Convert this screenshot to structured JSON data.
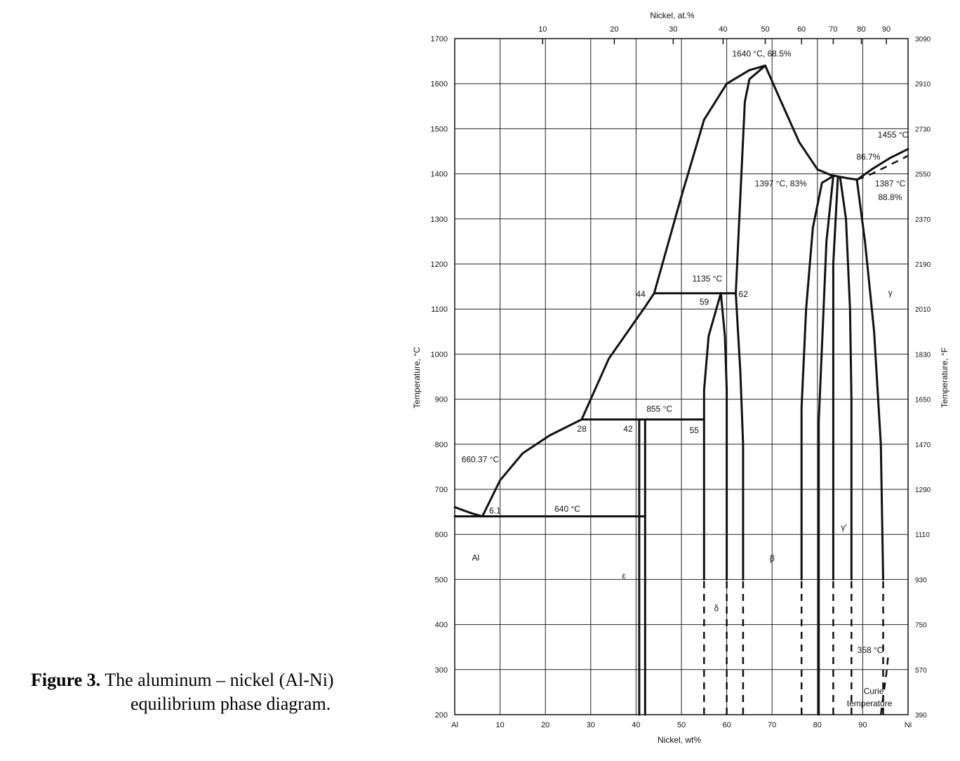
{
  "caption": {
    "label": "Figure 3.",
    "text_line1": "The aluminum – nickel (Al-Ni)",
    "text_line2": "equilibrium phase diagram."
  },
  "chart_data": {
    "type": "phase-diagram",
    "xlabel": "Nickel, wt%",
    "xlabel_top": "Nickel, at.%",
    "ylabel": "Temperature, °C",
    "ylabel_right": "Temperature, °F",
    "xlim": [
      0,
      100
    ],
    "ylim": [
      200,
      1700
    ],
    "x_end_labels": [
      "Al",
      "Ni"
    ],
    "x_ticks": [
      10,
      20,
      30,
      40,
      50,
      60,
      70,
      80,
      90
    ],
    "x_ticks_at": [
      {
        "label": "10",
        "wt": 19.4
      },
      {
        "label": "20",
        "wt": 35.2
      },
      {
        "label": "30",
        "wt": 48.2
      },
      {
        "label": "40",
        "wt": 59.2
      },
      {
        "label": "50",
        "wt": 68.5
      },
      {
        "label": "60",
        "wt": 76.5
      },
      {
        "label": "70",
        "wt": 83.5
      },
      {
        "label": "80",
        "wt": 89.7
      },
      {
        "label": "90",
        "wt": 95.2
      }
    ],
    "y_ticks": [
      200,
      300,
      400,
      500,
      600,
      700,
      800,
      900,
      1000,
      1100,
      1200,
      1300,
      1400,
      1500,
      1600,
      1700
    ],
    "y_ticks_f": [
      "390",
      "570",
      "750",
      "930",
      "1110",
      "1290",
      "1470",
      "1650",
      "1830",
      "2010",
      "2190",
      "2370",
      "2550",
      "2730",
      "2910",
      "3090"
    ],
    "grid": true,
    "curves": [
      {
        "points": [
          [
            0,
            660.37
          ],
          [
            2,
            653
          ],
          [
            4,
            646
          ],
          [
            6.1,
            640
          ]
        ]
      },
      {
        "points": [
          [
            6.1,
            640
          ],
          [
            10,
            720
          ],
          [
            15,
            780
          ],
          [
            21,
            820
          ],
          [
            25,
            840
          ],
          [
            28,
            855
          ]
        ]
      },
      {
        "points": [
          [
            28,
            855
          ],
          [
            34,
            990
          ],
          [
            42,
            1105
          ],
          [
            44,
            1135
          ]
        ]
      },
      {
        "points": [
          [
            44,
            1135
          ],
          [
            50,
            1350
          ],
          [
            55,
            1520
          ],
          [
            60,
            1600
          ],
          [
            65,
            1630
          ],
          [
            68.5,
            1640
          ]
        ]
      },
      {
        "points": [
          [
            68.5,
            1640
          ],
          [
            72,
            1560
          ],
          [
            76,
            1470
          ],
          [
            80,
            1410
          ],
          [
            83,
            1397
          ]
        ]
      },
      {
        "points": [
          [
            83,
            1397
          ],
          [
            86.7,
            1390
          ],
          [
            88.8,
            1387
          ]
        ]
      },
      {
        "points": [
          [
            88.8,
            1387
          ],
          [
            92,
            1410
          ],
          [
            96,
            1435
          ],
          [
            100,
            1455
          ]
        ]
      },
      {
        "points": [
          [
            0,
            640
          ],
          [
            42,
            640
          ]
        ]
      },
      {
        "points": [
          [
            28,
            855
          ],
          [
            55,
            855
          ]
        ]
      },
      {
        "points": [
          [
            44,
            1135
          ],
          [
            62,
            1135
          ]
        ]
      },
      {
        "points": [
          [
            42,
            200
          ],
          [
            42,
            855
          ]
        ]
      },
      {
        "points": [
          [
            40.7,
            200
          ],
          [
            40.7,
            855
          ]
        ]
      },
      {
        "points": [
          [
            55,
            500
          ],
          [
            55,
            920
          ],
          [
            56,
            1040
          ],
          [
            58.7,
            1135
          ]
        ]
      },
      {
        "points": [
          [
            58.7,
            1135
          ],
          [
            59.6,
            1040
          ],
          [
            60,
            920
          ],
          [
            60,
            500
          ]
        ]
      },
      {
        "points": [
          [
            62,
            1135
          ],
          [
            63,
            960
          ],
          [
            63.6,
            800
          ],
          [
            63.6,
            500
          ]
        ]
      },
      {
        "points": [
          [
            62,
            1135
          ],
          [
            63,
            1350
          ],
          [
            64,
            1560
          ],
          [
            65,
            1610
          ],
          [
            68.5,
            1640
          ]
        ]
      },
      {
        "points": [
          [
            76.5,
            500
          ],
          [
            76.5,
            880
          ],
          [
            77.5,
            1100
          ],
          [
            79,
            1280
          ],
          [
            81,
            1380
          ],
          [
            83.5,
            1395
          ]
        ]
      },
      {
        "points": [
          [
            80.3,
            200
          ],
          [
            80.3,
            850
          ],
          [
            82,
            1250
          ],
          [
            83.5,
            1395
          ]
        ]
      },
      {
        "points": [
          [
            83.5,
            500
          ],
          [
            83.5,
            1200
          ],
          [
            84.5,
            1390
          ],
          [
            84.6,
            1393
          ]
        ]
      },
      {
        "points": [
          [
            85,
            1393
          ],
          [
            86.3,
            1300
          ],
          [
            87.2,
            1100
          ],
          [
            87.5,
            900
          ],
          [
            87.5,
            500
          ]
        ]
      },
      {
        "points": [
          [
            88.7,
            1387
          ],
          [
            90.5,
            1250
          ],
          [
            92.5,
            1050
          ],
          [
            94,
            800
          ],
          [
            94.5,
            500
          ]
        ]
      }
    ],
    "dashed_curves": [
      {
        "points": [
          [
            55,
            200
          ],
          [
            55,
            500
          ]
        ]
      },
      {
        "points": [
          [
            60,
            200
          ],
          [
            60,
            500
          ]
        ]
      },
      {
        "points": [
          [
            63.6,
            200
          ],
          [
            63.6,
            500
          ]
        ]
      },
      {
        "points": [
          [
            76.5,
            200
          ],
          [
            76.5,
            500
          ]
        ]
      },
      {
        "points": [
          [
            83.5,
            200
          ],
          [
            83.5,
            500
          ]
        ]
      },
      {
        "points": [
          [
            87.5,
            200
          ],
          [
            87.5,
            500
          ]
        ]
      },
      {
        "points": [
          [
            94.5,
            200
          ],
          [
            94.5,
            500
          ]
        ]
      },
      {
        "points": [
          [
            88.8,
            1387
          ],
          [
            92,
            1400
          ],
          [
            96,
            1420
          ],
          [
            100,
            1440
          ]
        ]
      },
      {
        "points": [
          [
            94,
            200
          ],
          [
            94.5,
            240
          ],
          [
            95.2,
            290
          ],
          [
            95.6,
            330
          ]
        ]
      }
    ],
    "annotations": [
      {
        "text": "1640 °C, 68.5%",
        "x": 61.2,
        "y": 1660
      },
      {
        "text": "1455 °C",
        "x": 93.3,
        "y": 1480
      },
      {
        "text": "86.7%",
        "x": 88.6,
        "y": 1431
      },
      {
        "text": "1397 °C, 83%",
        "x": 66.2,
        "y": 1372
      },
      {
        "text": "1387 °C",
        "x": 92.7,
        "y": 1372
      },
      {
        "text": "88.8%",
        "x": 93.4,
        "y": 1342
      },
      {
        "text": "1135 °C",
        "x": 52.4,
        "y": 1161
      },
      {
        "text": "59",
        "x": 54,
        "y": 1110
      },
      {
        "text": "44",
        "x": 40,
        "y": 1127
      },
      {
        "text": "62",
        "x": 62.6,
        "y": 1127
      },
      {
        "text": "γ",
        "x": 95.6,
        "y": 1130
      },
      {
        "text": "855 °C",
        "x": 42.3,
        "y": 872
      },
      {
        "text": "28",
        "x": 27,
        "y": 828
      },
      {
        "text": "42",
        "x": 37.2,
        "y": 828
      },
      {
        "text": "55",
        "x": 51.8,
        "y": 825
      },
      {
        "text": "660.37 °C",
        "x": 1.5,
        "y": 760
      },
      {
        "text": "6.1",
        "x": 7.6,
        "y": 646
      },
      {
        "text": "640 °C",
        "x": 22,
        "y": 650
      },
      {
        "text": "γ′",
        "x": 85.2,
        "y": 610
      },
      {
        "text": "Al",
        "x": 3.8,
        "y": 542
      },
      {
        "text": "β",
        "x": 69.5,
        "y": 540
      },
      {
        "text": "ε",
        "x": 36.9,
        "y": 502
      },
      {
        "text": "δ",
        "x": 57.2,
        "y": 430
      },
      {
        "text": "358 °C",
        "x": 88.8,
        "y": 337
      },
      {
        "text": "Curie",
        "x": 90.2,
        "y": 246
      },
      {
        "text": "temperature",
        "x": 86.5,
        "y": 219
      }
    ]
  }
}
